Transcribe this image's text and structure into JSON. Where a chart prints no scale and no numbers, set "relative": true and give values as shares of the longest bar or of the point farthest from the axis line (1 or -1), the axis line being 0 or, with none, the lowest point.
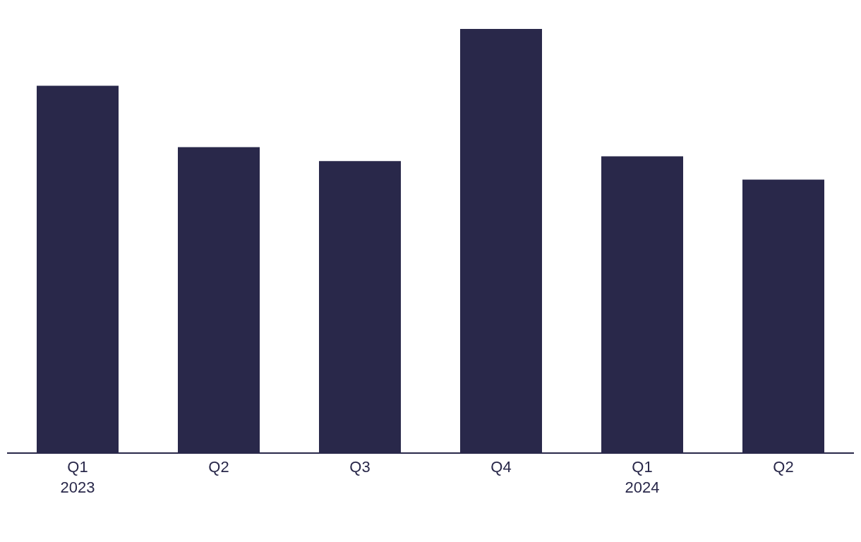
{
  "chart_data": {
    "type": "bar",
    "relative": true,
    "categories": [
      "Q1\n2023",
      "Q2",
      "Q3",
      "Q4",
      "Q1\n2024",
      "Q2"
    ],
    "values": [
      0.866,
      0.721,
      0.688,
      1,
      0.699,
      0.644
    ],
    "color": "#29284a"
  }
}
